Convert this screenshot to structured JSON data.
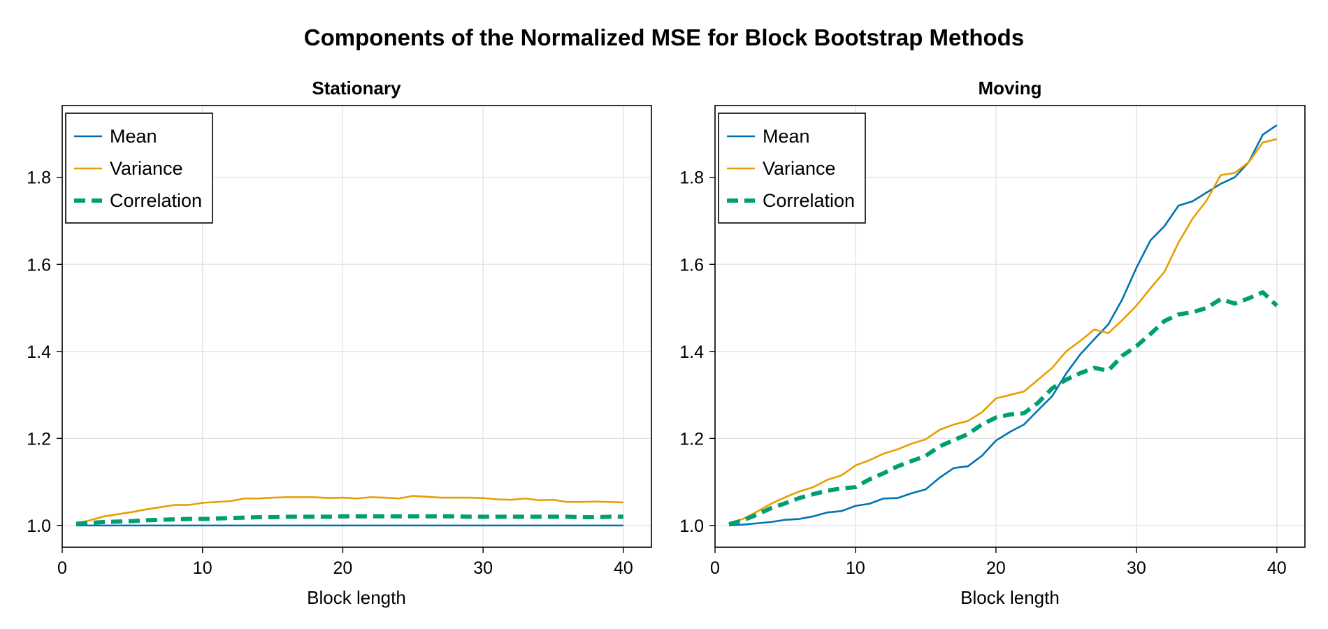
{
  "figure": {
    "title": "Components of the Normalized MSE for Block Bootstrap Methods"
  },
  "chart_data": [
    {
      "type": "line",
      "title": "Stationary",
      "xlabel": "Block length",
      "ylabel": "",
      "xlim": [
        0,
        42
      ],
      "ylim": [
        0.95,
        1.965
      ],
      "xticks": [
        0,
        10,
        20,
        30,
        40
      ],
      "yticks": [
        1.0,
        1.2,
        1.4,
        1.6,
        1.8
      ],
      "grid": true,
      "legend_position": "top-left",
      "x": [
        1,
        2,
        3,
        4,
        5,
        6,
        7,
        8,
        9,
        10,
        11,
        12,
        13,
        14,
        15,
        16,
        17,
        18,
        19,
        20,
        21,
        22,
        23,
        24,
        25,
        26,
        27,
        28,
        29,
        30,
        31,
        32,
        33,
        34,
        35,
        36,
        37,
        38,
        39,
        40
      ],
      "series": [
        {
          "name": "Mean",
          "color": "#0072b2",
          "style": "solid",
          "values": [
            1.0,
            1.0,
            1.0,
            1.0,
            1.0,
            1.0,
            1.0,
            1.0,
            1.0,
            1.0,
            1.0,
            1.0,
            1.0,
            1.0,
            1.0,
            1.0,
            1.0,
            1.0,
            1.0,
            1.0,
            1.0,
            1.0,
            1.0,
            1.0,
            1.0,
            1.0,
            1.0,
            1.0,
            1.0,
            1.0,
            1.0,
            1.0,
            1.0,
            1.0,
            1.0,
            1.0,
            1.0,
            1.0,
            1.0,
            1.0
          ]
        },
        {
          "name": "Variance",
          "color": "#e69f00",
          "style": "solid",
          "values": [
            1.005,
            1.012,
            1.021,
            1.026,
            1.031,
            1.037,
            1.042,
            1.047,
            1.047,
            1.052,
            1.054,
            1.056,
            1.062,
            1.062,
            1.064,
            1.065,
            1.065,
            1.065,
            1.063,
            1.064,
            1.062,
            1.065,
            1.064,
            1.062,
            1.068,
            1.066,
            1.064,
            1.064,
            1.064,
            1.063,
            1.06,
            1.059,
            1.062,
            1.058,
            1.059,
            1.054,
            1.054,
            1.055,
            1.054,
            1.053
          ]
        },
        {
          "name": "Correlation",
          "color": "#009e73",
          "style": "dashed",
          "values": [
            1.004,
            1.006,
            1.008,
            1.009,
            1.01,
            1.012,
            1.013,
            1.014,
            1.015,
            1.015,
            1.016,
            1.017,
            1.018,
            1.019,
            1.019,
            1.02,
            1.02,
            1.02,
            1.02,
            1.021,
            1.021,
            1.021,
            1.021,
            1.021,
            1.021,
            1.021,
            1.021,
            1.021,
            1.02,
            1.02,
            1.02,
            1.02,
            1.02,
            1.02,
            1.02,
            1.02,
            1.019,
            1.019,
            1.02,
            1.02
          ]
        }
      ]
    },
    {
      "type": "line",
      "title": "Moving",
      "xlabel": "Block length",
      "ylabel": "",
      "xlim": [
        0,
        42
      ],
      "ylim": [
        0.95,
        1.965
      ],
      "xticks": [
        0,
        10,
        20,
        30,
        40
      ],
      "yticks": [
        1.0,
        1.2,
        1.4,
        1.6,
        1.8
      ],
      "grid": true,
      "legend_position": "top-left",
      "x": [
        1,
        2,
        3,
        4,
        5,
        6,
        7,
        8,
        9,
        10,
        11,
        12,
        13,
        14,
        15,
        16,
        17,
        18,
        19,
        20,
        21,
        22,
        23,
        24,
        25,
        26,
        27,
        28,
        29,
        30,
        31,
        32,
        33,
        34,
        35,
        36,
        37,
        38,
        39,
        40
      ],
      "series": [
        {
          "name": "Mean",
          "color": "#0072b2",
          "style": "solid",
          "values": [
            1.0,
            1.002,
            1.005,
            1.008,
            1.013,
            1.015,
            1.021,
            1.03,
            1.033,
            1.045,
            1.05,
            1.062,
            1.063,
            1.074,
            1.083,
            1.11,
            1.132,
            1.136,
            1.16,
            1.195,
            1.215,
            1.232,
            1.265,
            1.297,
            1.349,
            1.393,
            1.428,
            1.462,
            1.52,
            1.592,
            1.655,
            1.688,
            1.735,
            1.745,
            1.765,
            1.785,
            1.8,
            1.835,
            1.898,
            1.92
          ]
        },
        {
          "name": "Variance",
          "color": "#e69f00",
          "style": "solid",
          "values": [
            1.005,
            1.015,
            1.032,
            1.05,
            1.065,
            1.078,
            1.088,
            1.105,
            1.115,
            1.138,
            1.15,
            1.165,
            1.175,
            1.188,
            1.198,
            1.22,
            1.232,
            1.24,
            1.26,
            1.292,
            1.3,
            1.308,
            1.335,
            1.362,
            1.4,
            1.424,
            1.45,
            1.442,
            1.472,
            1.505,
            1.545,
            1.583,
            1.65,
            1.705,
            1.747,
            1.805,
            1.81,
            1.835,
            1.88,
            1.888
          ]
        },
        {
          "name": "Correlation",
          "color": "#009e73",
          "style": "dashed",
          "values": [
            1.003,
            1.012,
            1.025,
            1.04,
            1.051,
            1.063,
            1.072,
            1.08,
            1.085,
            1.088,
            1.106,
            1.12,
            1.136,
            1.148,
            1.16,
            1.182,
            1.196,
            1.21,
            1.232,
            1.248,
            1.255,
            1.258,
            1.282,
            1.315,
            1.335,
            1.35,
            1.362,
            1.356,
            1.39,
            1.412,
            1.44,
            1.47,
            1.485,
            1.49,
            1.5,
            1.52,
            1.51,
            1.522,
            1.536,
            1.505
          ]
        }
      ]
    }
  ]
}
